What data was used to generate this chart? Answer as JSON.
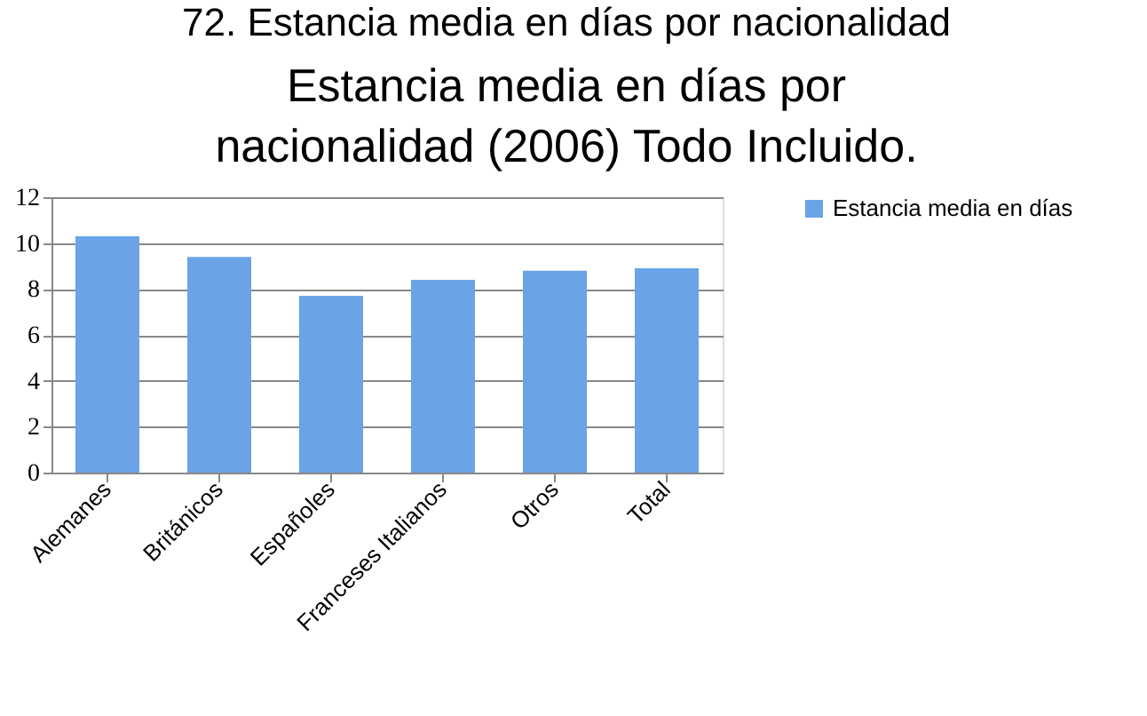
{
  "chart_data": {
    "type": "bar",
    "title": [
      "Estancia media en días por",
      "nacionalidad (2006) Todo Incluido."
    ],
    "annotations": [
      "72. Estancia media en días por nacionalidad"
    ],
    "categories": [
      "Alemanes",
      "Británicos",
      "Españoles",
      "Franceses Italianos",
      "Otros",
      "Total"
    ],
    "series": [
      {
        "name": "Estancia media en días",
        "color": "#6aa4e6",
        "values": [
          10.3,
          9.4,
          7.7,
          8.4,
          8.8,
          8.9
        ]
      }
    ],
    "ylim": [
      0,
      12
    ],
    "yticks": [
      0,
      2,
      4,
      6,
      8,
      10,
      12
    ],
    "grid": "y",
    "legend": "right"
  }
}
